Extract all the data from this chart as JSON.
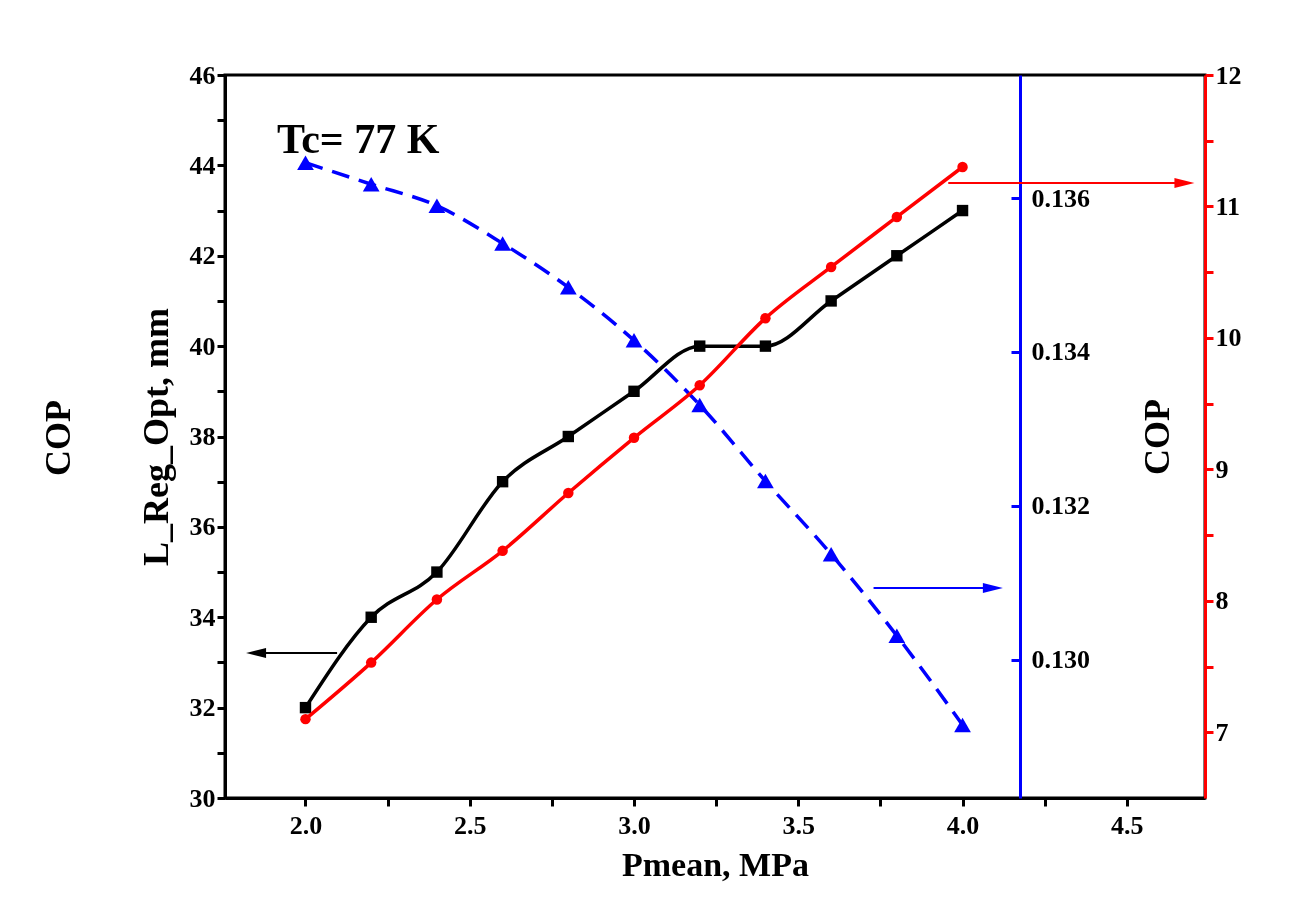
{
  "chart_data": {
    "type": "line",
    "x": [
      2.0,
      2.2,
      2.4,
      2.6,
      2.8,
      3.0,
      3.2,
      3.4,
      3.6,
      3.8,
      4.0
    ],
    "series": [
      {
        "color": "#000000",
        "marker": "square",
        "line_style": "solid",
        "values": [
          32,
          34,
          35,
          37,
          38,
          39,
          40,
          40,
          41,
          42,
          43
        ]
      },
      {
        "color": "#0000ff",
        "marker": "triangle",
        "line_style": "dashed",
        "axis": "y2",
        "values": [
          0.13646,
          0.13618,
          0.1359,
          0.13541,
          0.13484,
          0.13415,
          0.13331,
          0.13232,
          0.13137,
          0.13031,
          0.12915
        ]
      },
      {
        "color": "#ff0000",
        "marker": "circle",
        "line_style": "solid",
        "axis": "y3",
        "values": [
          7.1,
          7.53,
          8.01,
          8.38,
          8.82,
          9.24,
          9.64,
          10.15,
          10.54,
          10.92,
          11.3
        ]
      }
    ],
    "xlabel": "Pmean, MPa",
    "ylabel": "L_Reg_Opt, mm",
    "y3label": "COP",
    "annotations": [
      "Tc= 77 K",
      "COP"
    ],
    "xlim": [
      1.755,
      4.738
    ],
    "xticks": [
      {
        "value": 2,
        "label": "2.0"
      },
      {
        "value": 2.25,
        "label": null
      },
      {
        "value": 2.5,
        "label": "2.5"
      },
      {
        "value": 2.75,
        "label": null
      },
      {
        "value": 3,
        "label": "3.0"
      },
      {
        "value": 3.25,
        "label": null
      },
      {
        "value": 3.5,
        "label": "3.5"
      },
      {
        "value": 3.75,
        "label": null
      },
      {
        "value": 4,
        "label": "4.0"
      },
      {
        "value": 4.25,
        "label": null
      },
      {
        "value": 4.5,
        "label": "4.5"
      }
    ],
    "ylim": [
      30,
      46
    ],
    "yticks": [
      30,
      {
        "value": 31,
        "label": null
      },
      32,
      {
        "value": 33,
        "label": null
      },
      34,
      {
        "value": 35,
        "label": null
      },
      36,
      {
        "value": 37,
        "label": null
      },
      38,
      {
        "value": 39,
        "label": null
      },
      40,
      {
        "value": 41,
        "label": null
      },
      42,
      {
        "value": 43,
        "label": null
      },
      44,
      {
        "value": 45,
        "label": null
      },
      46
    ],
    "y2lim": [
      0.1282,
      0.1376
    ],
    "y2ticks": [
      {
        "value": 0.13,
        "label": "0.130"
      },
      {
        "value": 0.132,
        "label": "0.132"
      },
      {
        "value": 0.134,
        "label": "0.134"
      },
      {
        "value": 0.136,
        "label": "0.136"
      }
    ],
    "y3lim": [
      6.5,
      12
    ],
    "y3ticks": [
      7,
      {
        "value": 7.5,
        "label": null
      },
      8,
      {
        "value": 8.5,
        "label": null
      },
      9,
      {
        "value": 9.5,
        "label": null
      },
      10,
      {
        "value": 10.5,
        "label": null
      },
      11,
      {
        "value": 11.5,
        "label": null
      },
      12
    ]
  }
}
